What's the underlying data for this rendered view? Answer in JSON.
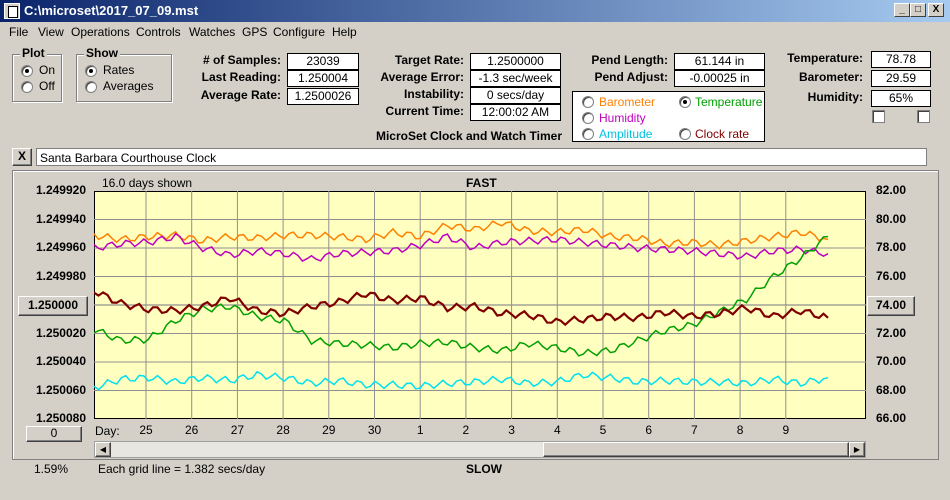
{
  "window": {
    "title": "C:\\microset\\2017_07_09.mst",
    "controls": [
      "_",
      "□",
      "X"
    ]
  },
  "menu": [
    "File",
    "View",
    "Operations",
    "Controls",
    "Watches",
    "GPS",
    "Configure",
    "Help"
  ],
  "plot_group": {
    "title": "Plot",
    "options": [
      "On",
      "Off"
    ],
    "selected": "On"
  },
  "show_group": {
    "title": "Show",
    "options": [
      "Rates",
      "Averages"
    ],
    "selected": "Rates"
  },
  "stats": {
    "samples_label": "# of Samples:",
    "samples": "23039",
    "last_reading_label": "Last Reading:",
    "last_reading": "1.250004",
    "average_rate_label": "Average Rate:",
    "average_rate": "1.2500026"
  },
  "rates": {
    "target_rate_label": "Target Rate:",
    "target_rate": "1.2500000",
    "average_error_label": "Average Error:",
    "average_error": "-1.3 sec/week",
    "instability_label": "Instability:",
    "instability": "0 secs/day",
    "current_time_label": "Current Time:",
    "current_time": "12:00:02 AM",
    "app_name": "MicroSet Clock and Watch Timer"
  },
  "pendulum": {
    "pend_length_label": "Pend Length:",
    "pend_length": "61.144 in",
    "pend_adjust_label": "Pend Adjust:",
    "pend_adjust": "-0.00025 in"
  },
  "series_select": {
    "options": [
      {
        "name": "Barometer",
        "color": "#ff8000",
        "checked": false
      },
      {
        "name": "Temperature",
        "color": "#00a000",
        "checked": true
      },
      {
        "name": "Humidity",
        "color": "#c000c0",
        "checked": false
      },
      {
        "name": "Clock rate",
        "color": "#800000",
        "checked": false
      },
      {
        "name": "Amplitude",
        "color": "#00c0e0",
        "checked": false
      }
    ]
  },
  "environment": {
    "temperature_label": "Temperature:",
    "temperature": "78.78",
    "barometer_label": "Barometer:",
    "barometer": "29.59",
    "humidity_label": "Humidity:",
    "humidity": "65%"
  },
  "clock_name": "Santa Barbara Courthouse Clock",
  "close_glyph": "X",
  "chart": {
    "days_shown": "16.0 days shown",
    "top_label": "FAST",
    "bottom_label": "SLOW",
    "grid_note": "Each grid line = 1.382 secs/day",
    "day_prefix": "Day:",
    "left_button": "1.250000",
    "right_button": "74.00",
    "zero_button": "0",
    "percent": "1.59%"
  },
  "chart_data": {
    "type": "line",
    "y_left_ticks": [
      "1.249920",
      "1.249940",
      "1.249960",
      "1.249980",
      "1.250000",
      "1.250020",
      "1.250040",
      "1.250060",
      "1.250080"
    ],
    "y_left_range": [
      1.24992,
      1.25008
    ],
    "y_left_inverted": true,
    "y_right_ticks": [
      "82.00",
      "80.00",
      "78.00",
      "76.00",
      "74.00",
      "72.00",
      "70.00",
      "68.00",
      "66.00"
    ],
    "y_right_range": [
      66,
      82
    ],
    "x_ticks": [
      "25",
      "26",
      "27",
      "28",
      "29",
      "30",
      "1",
      "2",
      "3",
      "4",
      "5",
      "6",
      "7",
      "8",
      "9"
    ],
    "grid": true,
    "series": [
      {
        "name": "Barometer",
        "color": "#ff8000",
        "axis": "right",
        "values": [
          78.9,
          78.6,
          78.8,
          78.9,
          78.5,
          78.8,
          78.7,
          78.9,
          78.9,
          78.8,
          78.6,
          79.1,
          78.8,
          79.6,
          79.3,
          79.8,
          79.2,
          79.1,
          79.3,
          78.8,
          78.7,
          78.3,
          78.4,
          78.2,
          78.5,
          78.8,
          79.1,
          78.6
        ]
      },
      {
        "name": "Humidity",
        "color": "#c000c0",
        "axis": "right",
        "values": [
          78.0,
          78.3,
          78.4,
          78.8,
          78.0,
          77.5,
          77.8,
          77.6,
          77.2,
          77.6,
          77.7,
          77.8,
          78.2,
          78.8,
          78.0,
          78.4,
          78.5,
          78.6,
          78.4,
          78.2,
          78.0,
          77.9,
          77.8,
          77.6,
          77.4,
          77.8,
          77.9,
          77.6
        ]
      },
      {
        "name": "Temperature",
        "color": "#00a000",
        "axis": "right",
        "values": [
          72.3,
          71.5,
          71.6,
          72.9,
          73.7,
          73.9,
          73.2,
          72.9,
          71.5,
          71.3,
          71.2,
          71.0,
          71.3,
          71.4,
          71.0,
          70.8,
          71.3,
          71.0,
          70.6,
          70.8,
          71.5,
          72.2,
          72.6,
          73.5,
          74.4,
          76.0,
          77.3,
          78.8
        ]
      },
      {
        "name": "Clock rate",
        "color": "#800000",
        "axis": "right",
        "values": [
          75.0,
          74.1,
          73.7,
          73.6,
          73.9,
          74.5,
          73.6,
          73.4,
          73.9,
          74.2,
          74.8,
          74.3,
          74.5,
          73.8,
          73.9,
          73.4,
          73.3,
          72.8,
          73.0,
          73.2,
          73.1,
          73.5,
          73.2,
          73.4,
          73.8,
          73.2,
          73.6,
          73.1
        ]
      },
      {
        "name": "Amplitude",
        "color": "#00e0f0",
        "axis": "right",
        "values": [
          68.2,
          68.8,
          68.9,
          68.6,
          68.9,
          68.7,
          69.1,
          68.9,
          68.5,
          68.7,
          68.4,
          68.4,
          68.3,
          68.5,
          68.6,
          68.8,
          68.5,
          68.6,
          69.1,
          68.9,
          68.6,
          68.7,
          68.6,
          68.6,
          68.5,
          68.8,
          68.5,
          68.9
        ]
      }
    ]
  }
}
